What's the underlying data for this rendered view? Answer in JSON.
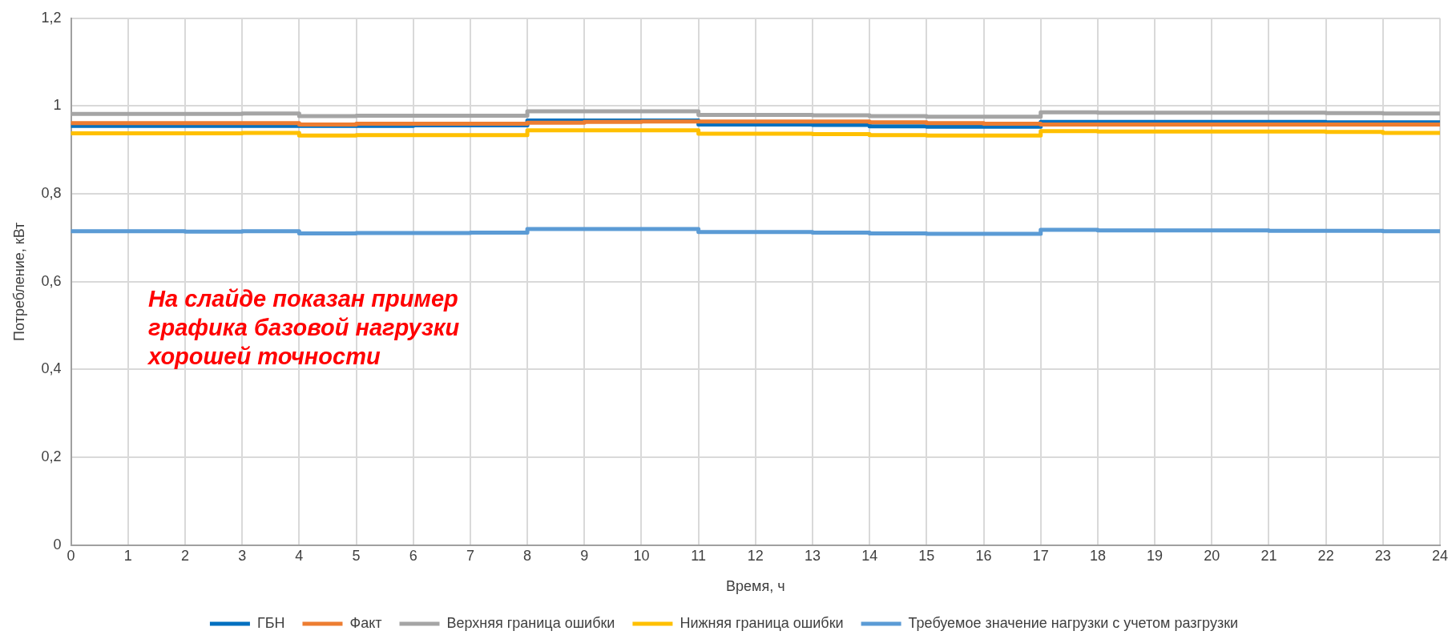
{
  "chart_data": {
    "type": "step",
    "xlabel": "Время, ч",
    "ylabel": "Потребление, кВт",
    "x": [
      0,
      1,
      2,
      3,
      4,
      5,
      6,
      7,
      8,
      9,
      10,
      11,
      12,
      13,
      14,
      15,
      16,
      17,
      18,
      19,
      20,
      21,
      22,
      23,
      24
    ],
    "series": [
      {
        "name": "ГБН",
        "color": "#0070c0",
        "values": [
          0.955,
          0.955,
          0.955,
          0.955,
          0.955,
          0.955,
          0.956,
          0.956,
          0.967,
          0.967,
          0.967,
          0.958,
          0.958,
          0.957,
          0.954,
          0.953,
          0.953,
          0.964,
          0.964,
          0.964,
          0.964,
          0.964,
          0.963,
          0.963,
          0.963
        ]
      },
      {
        "name": "Факт",
        "color": "#ed7d31",
        "values": [
          0.961,
          0.961,
          0.961,
          0.961,
          0.958,
          0.96,
          0.96,
          0.96,
          0.962,
          0.964,
          0.965,
          0.965,
          0.965,
          0.965,
          0.963,
          0.961,
          0.96,
          0.958,
          0.958,
          0.958,
          0.958,
          0.958,
          0.958,
          0.958,
          0.958
        ]
      },
      {
        "name": "Верхняя граница ошибки",
        "color": "#a5a5a5",
        "values": [
          0.982,
          0.982,
          0.982,
          0.983,
          0.977,
          0.978,
          0.978,
          0.978,
          0.988,
          0.988,
          0.988,
          0.98,
          0.98,
          0.979,
          0.977,
          0.976,
          0.976,
          0.986,
          0.985,
          0.985,
          0.985,
          0.985,
          0.984,
          0.983,
          0.983
        ]
      },
      {
        "name": "Нижняя граница ошибки",
        "color": "#ffc000",
        "values": [
          0.938,
          0.938,
          0.938,
          0.939,
          0.933,
          0.934,
          0.934,
          0.934,
          0.945,
          0.945,
          0.945,
          0.937,
          0.937,
          0.936,
          0.934,
          0.933,
          0.933,
          0.943,
          0.942,
          0.942,
          0.942,
          0.942,
          0.941,
          0.939,
          0.939
        ]
      },
      {
        "name": "Требуемое значение нагрузки с учетом разгрузки",
        "color": "#5b9bd5",
        "values": [
          0.715,
          0.715,
          0.714,
          0.715,
          0.71,
          0.711,
          0.711,
          0.712,
          0.72,
          0.72,
          0.72,
          0.713,
          0.713,
          0.712,
          0.71,
          0.709,
          0.709,
          0.718,
          0.717,
          0.717,
          0.717,
          0.716,
          0.716,
          0.715,
          0.715
        ]
      }
    ],
    "xlim": [
      0,
      24
    ],
    "xticks": [
      0,
      1,
      2,
      3,
      4,
      5,
      6,
      7,
      8,
      9,
      10,
      11,
      12,
      13,
      14,
      15,
      16,
      17,
      18,
      19,
      20,
      21,
      22,
      23,
      24
    ],
    "ylim": [
      0,
      1.2
    ],
    "yticks": [
      0,
      {
        "value": 0.2,
        "label": "0,2"
      },
      {
        "value": 0.4,
        "label": "0,4"
      },
      {
        "value": 0.6,
        "label": "0,6"
      },
      {
        "value": 0.8,
        "label": "0,8"
      },
      1,
      {
        "value": 1.2,
        "label": "1,2"
      }
    ],
    "grid": true,
    "legend": "bottom",
    "marker": "none",
    "line_style": "solid",
    "annotations": [
      "На слайде показан пример графика базовой нагрузки хорошей точности"
    ]
  }
}
